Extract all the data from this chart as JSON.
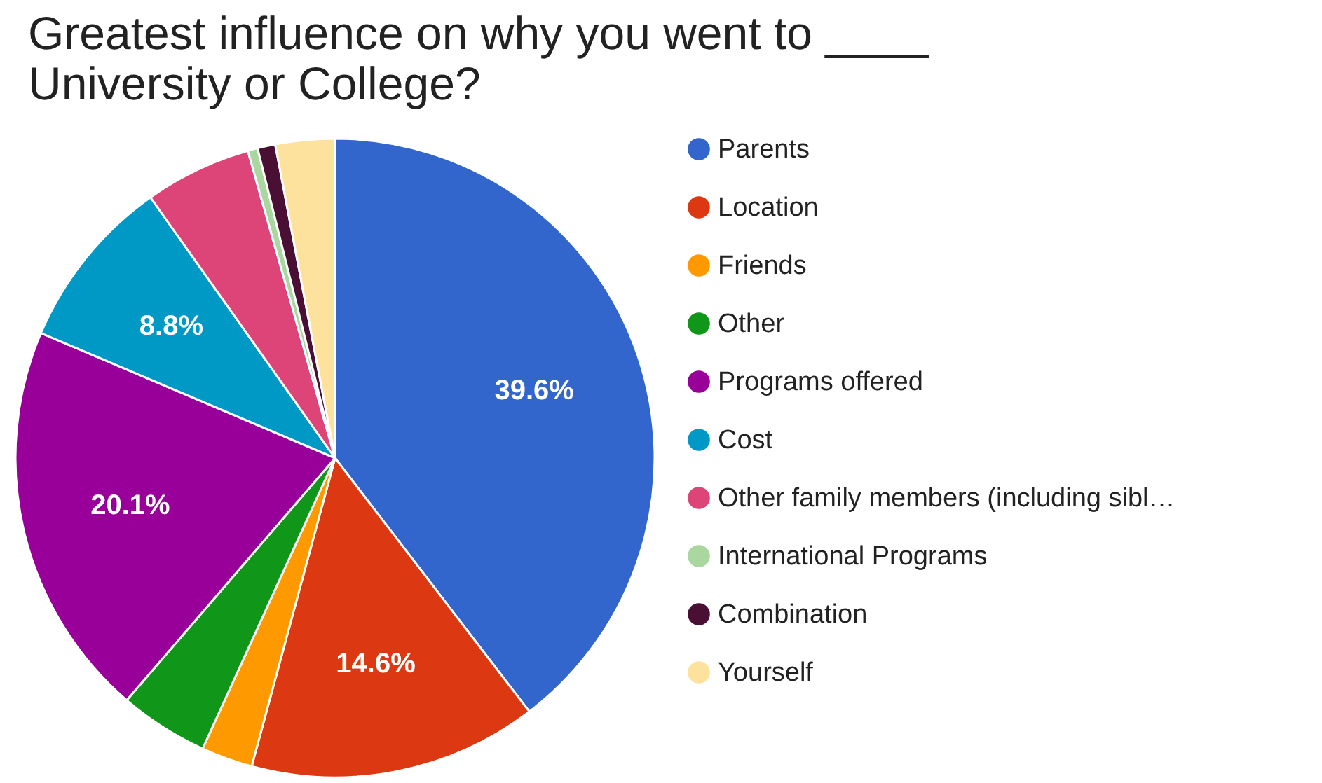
{
  "chart_data": {
    "type": "pie",
    "title": "Greatest influence on why you went to ____ University or College?",
    "categories": [
      "Parents",
      "Location",
      "Friends",
      "Other",
      "Programs offered",
      "Cost",
      "Other family members (including sibl…",
      "International Programs",
      "Combination",
      "Yourself"
    ],
    "values": [
      39.6,
      14.6,
      2.6,
      4.5,
      20.1,
      8.8,
      5.4,
      0.5,
      0.9,
      3.0
    ],
    "value_labels": [
      "39.6%",
      "14.6%",
      null,
      null,
      "20.1%",
      "8.8%",
      null,
      null,
      null,
      null
    ],
    "colors": [
      "#3366cc",
      "#dc3912",
      "#ff9900",
      "#109618",
      "#990099",
      "#0099c6",
      "#dd4477",
      "#aad79f",
      "#4a1034",
      "#fce29c"
    ],
    "legend": "right"
  }
}
